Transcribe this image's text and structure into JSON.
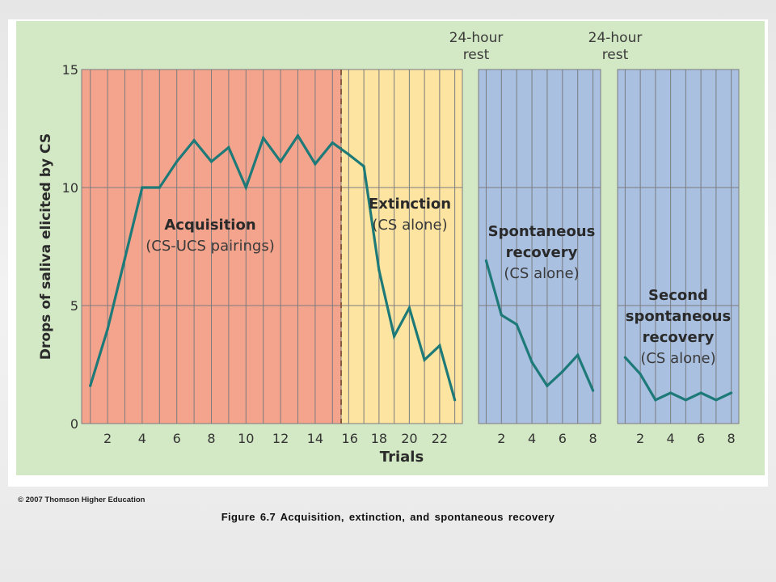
{
  "chart_data": {
    "type": "line",
    "ylabel": "Drops of saliva elicited by CS",
    "xlabel": "Trials",
    "ylim": [
      0,
      15
    ],
    "y_ticks": [
      0,
      5,
      10,
      15
    ],
    "grid": true,
    "panels": [
      {
        "id": "acquisition",
        "label": [
          "Acquisition",
          "(CS-UCS pairings)"
        ],
        "color": "#f4a48c",
        "x_range": [
          0.5,
          15.5
        ],
        "tick_labels": [
          "2",
          "4",
          "6",
          "8",
          "10",
          "12",
          "14",
          "16"
        ],
        "tick_values": [
          2,
          4,
          6,
          8,
          10,
          12,
          14,
          16
        ],
        "x": [
          1,
          2,
          3,
          4,
          5,
          6,
          7,
          8,
          9,
          10,
          11,
          12,
          13,
          14,
          15
        ],
        "y": [
          1.6,
          4.0,
          7.0,
          10.0,
          10.0,
          11.1,
          12.0,
          11.1,
          11.7,
          10.0,
          12.1,
          11.1,
          12.2,
          11.0,
          11.9
        ]
      },
      {
        "id": "extinction",
        "label": [
          "Extinction",
          "(CS alone)"
        ],
        "color": "#fde4a0",
        "x_range": [
          15.5,
          23.5
        ],
        "tick_labels": [
          "18",
          "20",
          "22"
        ],
        "tick_values": [
          18,
          20,
          22
        ],
        "x": [
          16,
          17,
          18,
          19,
          20,
          21,
          22,
          23
        ],
        "y": [
          11.4,
          10.9,
          6.5,
          3.7,
          4.9,
          2.7,
          3.3,
          1.0
        ]
      },
      {
        "id": "spontaneous-recovery",
        "header": [
          "24-hour",
          "rest"
        ],
        "label": [
          "Spontaneous",
          "recovery",
          "(CS alone)"
        ],
        "color": "#a9c0e0",
        "x_range": [
          0.5,
          8.5
        ],
        "tick_labels": [
          "2",
          "4",
          "6",
          "8"
        ],
        "tick_values": [
          2,
          4,
          6,
          8
        ],
        "x": [
          1,
          2,
          3,
          4,
          5,
          6,
          7,
          8
        ],
        "y": [
          6.9,
          4.6,
          4.2,
          2.6,
          1.6,
          2.2,
          2.9,
          1.4
        ]
      },
      {
        "id": "second-spontaneous-recovery",
        "header": [
          "24-hour",
          "rest"
        ],
        "label": [
          "Second",
          "spontaneous",
          "recovery",
          "(CS alone)"
        ],
        "color": "#a9c0e0",
        "x_range": [
          0.5,
          8.5
        ],
        "tick_labels": [
          "2",
          "4",
          "6",
          "8"
        ],
        "tick_values": [
          2,
          4,
          6,
          8
        ],
        "x": [
          1,
          2,
          3,
          4,
          5,
          6,
          7,
          8
        ],
        "y": [
          2.8,
          2.1,
          1.0,
          1.3,
          1.0,
          1.3,
          1.0,
          1.3
        ]
      }
    ]
  },
  "colors": {
    "frame_background": "#d3e8c4",
    "line": "#1e7a78",
    "grid": "#7b7b80"
  },
  "copyright": "© 2007 Thomson Higher Education",
  "caption": "Figure 6.7 Acquisition, extinction, and spontaneous recovery"
}
